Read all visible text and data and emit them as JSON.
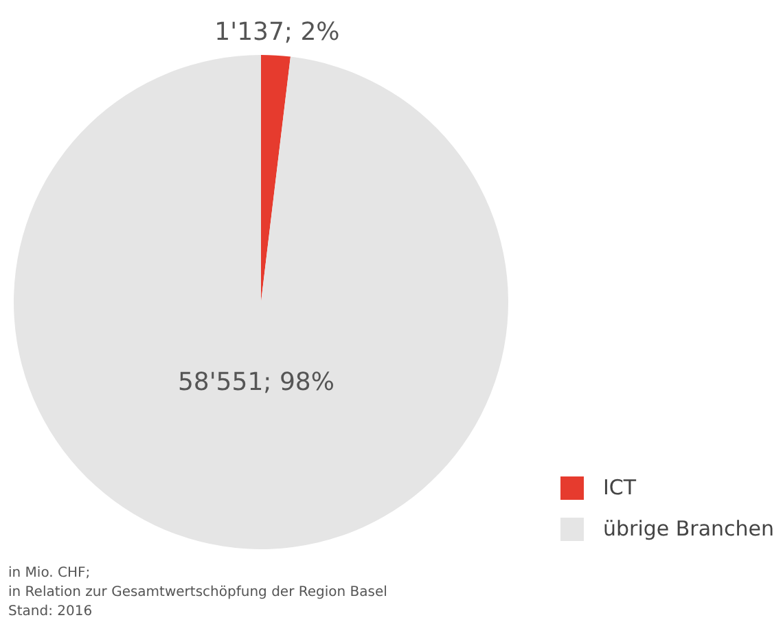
{
  "chart_data": {
    "type": "pie",
    "categories": [
      "ICT",
      "übrige Branchen"
    ],
    "values": [
      1137,
      58551
    ],
    "colors": [
      "#e63b2e",
      "#e5e5e5"
    ],
    "value_labels": [
      "1'137; 2%",
      "58'551; 98%"
    ],
    "legend": "bottom right",
    "annotations": [
      "in Mio. CHF;",
      "in Relation zur Gesamtwertschöpfung der Region Basel",
      "Stand: 2016"
    ]
  }
}
